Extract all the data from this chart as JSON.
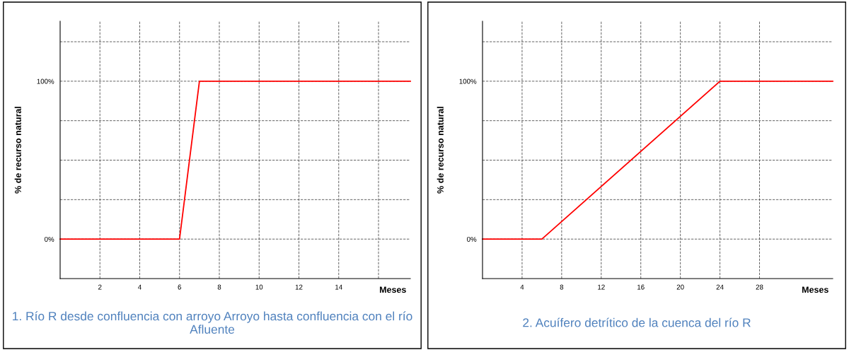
{
  "chart_data": [
    {
      "type": "line",
      "xlabel": "Meses",
      "ylabel": "% de recurso natural",
      "annotations": [
        "1. Río R desde confluencia con arroyo Arroyo hasta confluencia con el río Afluente"
      ],
      "x": [
        0,
        6,
        7,
        17.6
      ],
      "series": [
        {
          "color": "#ff0000",
          "values": [
            0,
            0,
            100,
            100
          ]
        }
      ],
      "xlim": [
        0,
        17.6
      ],
      "xticks": [
        2,
        4,
        6,
        8,
        10,
        12,
        14,
        {
          "value": 16,
          "label": null
        }
      ],
      "ylim": [
        -25,
        138
      ],
      "yticks": [
        {
          "value": 0,
          "label": "0%"
        },
        {
          "value": 25,
          "label": null
        },
        {
          "value": 50,
          "label": null
        },
        {
          "value": 75,
          "label": null
        },
        {
          "value": 100,
          "label": "100%"
        },
        {
          "value": 125,
          "label": null
        }
      ],
      "grid": true,
      "marker": "none",
      "line_style": "solid"
    },
    {
      "type": "line",
      "xlabel": "Meses",
      "ylabel": "% de recurso natural",
      "annotations": [
        "2. Acuífero detrítico de la cuenca del río R"
      ],
      "x": [
        0,
        6,
        24,
        35.4
      ],
      "series": [
        {
          "color": "#ff0000",
          "values": [
            0,
            0,
            100,
            100
          ]
        }
      ],
      "xlim": [
        0,
        35.4
      ],
      "xticks": [
        4,
        8,
        12,
        16,
        20,
        24,
        28
      ],
      "ylim": [
        -25,
        138
      ],
      "yticks": [
        {
          "value": 0,
          "label": "0%"
        },
        {
          "value": 25,
          "label": null
        },
        {
          "value": 50,
          "label": null
        },
        {
          "value": 75,
          "label": null
        },
        {
          "value": 100,
          "label": "100%"
        },
        {
          "value": 125,
          "label": null
        }
      ],
      "grid": true,
      "marker": "none",
      "line_style": "solid"
    }
  ]
}
